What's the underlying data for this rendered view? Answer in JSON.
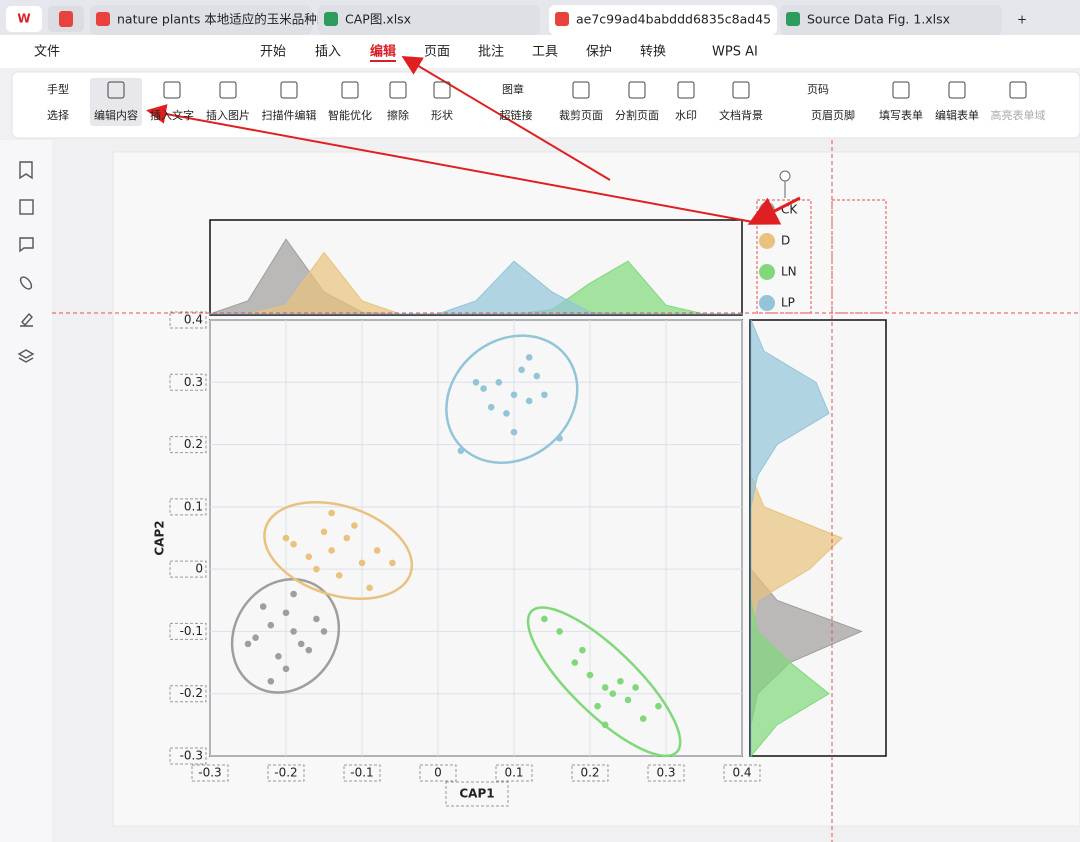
{
  "tabs": [
    "nature plants 本地适应的玉米品种的",
    "CAP图.xlsx",
    "ae7c99ad4babddd6835c8ad45",
    "Source Data Fig. 1.xlsx"
  ],
  "menu": [
    "文件",
    "开始",
    "插入",
    "编辑",
    "页面",
    "批注",
    "工具",
    "保护",
    "转换",
    "WPS AI"
  ],
  "toolbar": [
    "手型",
    "选择",
    "编辑内容",
    "插入文字",
    "插入图片",
    "扫描件编辑",
    "智能优化",
    "擦除",
    "形状",
    "图章",
    "超链接",
    "裁剪页面",
    "分割页面",
    "水印",
    "文档背景",
    "页码",
    "页眉页脚",
    "填写表单",
    "编辑表单",
    "高亮表单域"
  ],
  "chart_data": {
    "type": "scatter",
    "xlabel": "CAP1",
    "ylabel": "CAP2",
    "xlim": [
      -0.3,
      0.4
    ],
    "ylim": [
      -0.3,
      0.4
    ],
    "xticks": [
      -0.3,
      -0.2,
      -0.1,
      0,
      0.1,
      0.2,
      0.3,
      0.4
    ],
    "yticks": [
      -0.3,
      -0.2,
      -0.1,
      0,
      0.1,
      0.2,
      0.3,
      0.4
    ],
    "density_grid": [
      -0.3,
      -0.25,
      -0.2,
      -0.15,
      -0.1,
      -0.05,
      0,
      0.05,
      0.1,
      0.15,
      0.2,
      0.25,
      0.3,
      0.35,
      0.4
    ],
    "series": [
      {
        "name": "CK",
        "color": "#a19d9d",
        "x": [
          -0.22,
          -0.18,
          -0.2,
          -0.24,
          -0.16,
          -0.21,
          -0.19,
          -0.23,
          -0.17,
          -0.2,
          -0.25,
          -0.15,
          -0.19,
          -0.22
        ],
        "y": [
          -0.09,
          -0.12,
          -0.07,
          -0.11,
          -0.08,
          -0.14,
          -0.1,
          -0.06,
          -0.13,
          -0.16,
          -0.12,
          -0.1,
          -0.04,
          -0.18
        ],
        "density_x": [
          0,
          0.15,
          0.85,
          0.25,
          0.02,
          0,
          0,
          0,
          0,
          0,
          0,
          0,
          0,
          0,
          0
        ],
        "density_y": [
          0,
          0,
          0.05,
          0.3,
          0.85,
          0.2,
          0,
          0,
          0,
          0,
          0,
          0,
          0,
          0,
          0
        ]
      },
      {
        "name": "D",
        "color": "#e8c27e",
        "x": [
          -0.14,
          -0.12,
          -0.17,
          -0.1,
          -0.15,
          -0.13,
          -0.19,
          -0.08,
          -0.16,
          -0.11,
          -0.2,
          -0.06,
          -0.14,
          -0.09
        ],
        "y": [
          0.03,
          0.05,
          0.02,
          0.01,
          0.06,
          -0.01,
          0.04,
          0.03,
          0,
          0.07,
          0.05,
          0.01,
          0.09,
          -0.03
        ],
        "density_x": [
          0,
          0,
          0.1,
          0.7,
          0.15,
          0,
          0,
          0,
          0,
          0,
          0,
          0,
          0,
          0,
          0
        ],
        "density_y": [
          0,
          0,
          0,
          0,
          0,
          0.05,
          0.45,
          0.7,
          0.1,
          0,
          0,
          0,
          0,
          0,
          0
        ]
      },
      {
        "name": "LN",
        "color": "#80d87a",
        "x": [
          0.22,
          0.2,
          0.25,
          0.18,
          0.23,
          0.21,
          0.27,
          0.19,
          0.24,
          0.16,
          0.26,
          0.22,
          0.14,
          0.29
        ],
        "y": [
          -0.19,
          -0.17,
          -0.21,
          -0.15,
          -0.2,
          -0.22,
          -0.24,
          -0.13,
          -0.18,
          -0.1,
          -0.19,
          -0.25,
          -0.08,
          -0.22
        ],
        "density_x": [
          0,
          0,
          0,
          0,
          0,
          0,
          0,
          0,
          0,
          0.05,
          0.35,
          0.6,
          0.1,
          0,
          0
        ],
        "density_y": [
          0,
          0.2,
          0.6,
          0.3,
          0.05,
          0,
          0,
          0,
          0,
          0,
          0,
          0,
          0,
          0,
          0
        ]
      },
      {
        "name": "LP",
        "color": "#93c4d8",
        "x": [
          0.1,
          0.08,
          0.12,
          0.06,
          0.11,
          0.09,
          0.14,
          0.07,
          0.13,
          0.05,
          0.1,
          0.16,
          0.03,
          0.12
        ],
        "y": [
          0.28,
          0.3,
          0.27,
          0.29,
          0.32,
          0.25,
          0.28,
          0.26,
          0.31,
          0.3,
          0.22,
          0.21,
          0.19,
          0.34
        ],
        "density_x": [
          0,
          0,
          0,
          0,
          0,
          0,
          0,
          0.15,
          0.6,
          0.25,
          0.02,
          0,
          0,
          0,
          0
        ],
        "density_y": [
          0,
          0,
          0,
          0,
          0,
          0,
          0,
          0,
          0,
          0.05,
          0.2,
          0.6,
          0.5,
          0.1,
          0
        ]
      }
    ]
  }
}
